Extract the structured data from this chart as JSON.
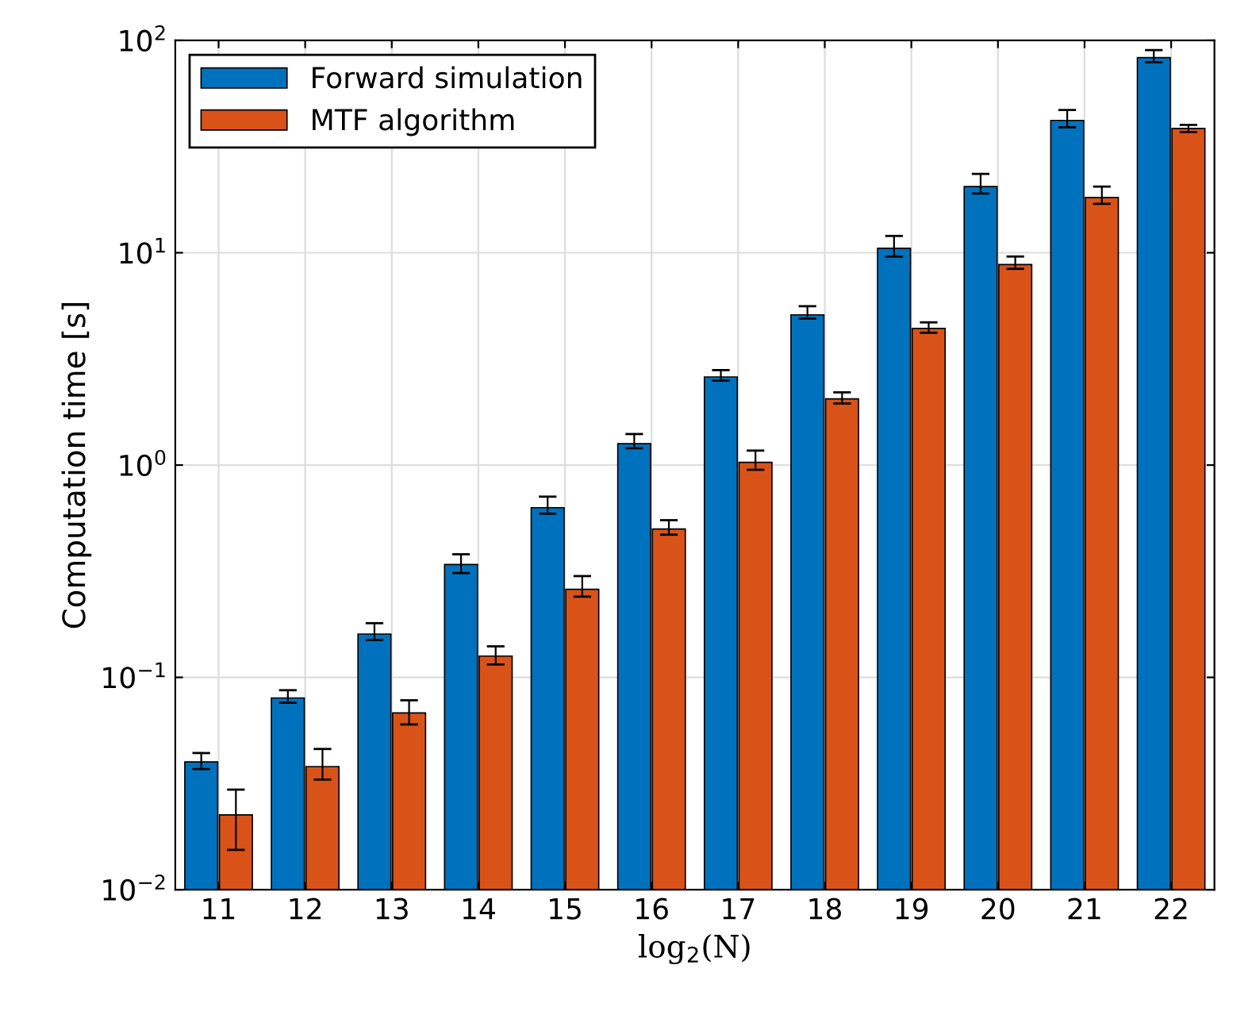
{
  "chart_data": {
    "type": "bar",
    "xlabel": "log$_{2}$(N)",
    "ylabel": "Computation time [s]",
    "categories": [
      "11",
      "12",
      "13",
      "14",
      "15",
      "16",
      "17",
      "18",
      "19",
      "20",
      "21",
      "22"
    ],
    "series": [
      {
        "name": "Forward simulation",
        "color": "#0072bd",
        "values": [
          0.04,
          0.08,
          0.16,
          0.34,
          0.63,
          1.26,
          2.6,
          5.1,
          10.5,
          20.5,
          42,
          83
        ],
        "errors": [
          [
            0.037,
            0.044
          ],
          [
            0.076,
            0.087
          ],
          [
            0.15,
            0.18
          ],
          [
            0.31,
            0.38
          ],
          [
            0.59,
            0.71
          ],
          [
            1.2,
            1.4
          ],
          [
            2.5,
            2.8
          ],
          [
            4.9,
            5.6
          ],
          [
            9.6,
            12
          ],
          [
            19,
            23.5
          ],
          [
            39,
            47
          ],
          [
            79,
            90
          ]
        ]
      },
      {
        "name": "MTF algorithm",
        "color": "#d95319",
        "values": [
          0.0225,
          0.038,
          0.068,
          0.126,
          0.26,
          0.5,
          1.03,
          2.05,
          4.4,
          8.8,
          18.2,
          38.5
        ],
        "errors": [
          [
            0.0154,
            0.0296
          ],
          [
            0.033,
            0.046
          ],
          [
            0.06,
            0.078
          ],
          [
            0.115,
            0.14
          ],
          [
            0.24,
            0.3
          ],
          [
            0.47,
            0.55
          ],
          [
            0.95,
            1.17
          ],
          [
            1.95,
            2.2
          ],
          [
            4.2,
            4.7
          ],
          [
            8.4,
            9.6
          ],
          [
            17,
            20.5
          ],
          [
            37,
            40
          ]
        ]
      }
    ],
    "log": "y",
    "ylim": [
      0.01,
      100
    ],
    "yticks": [
      {
        "value": 0.01,
        "label": "10$^{−2}$"
      },
      {
        "value": 0.1,
        "label": "10$^{−1}$"
      },
      {
        "value": 1,
        "label": "10$^{0}$"
      },
      {
        "value": 10,
        "label": "10$^{1}$"
      },
      {
        "value": 100,
        "label": "10$^{2}$"
      }
    ],
    "grid": true,
    "legend": "top left"
  }
}
